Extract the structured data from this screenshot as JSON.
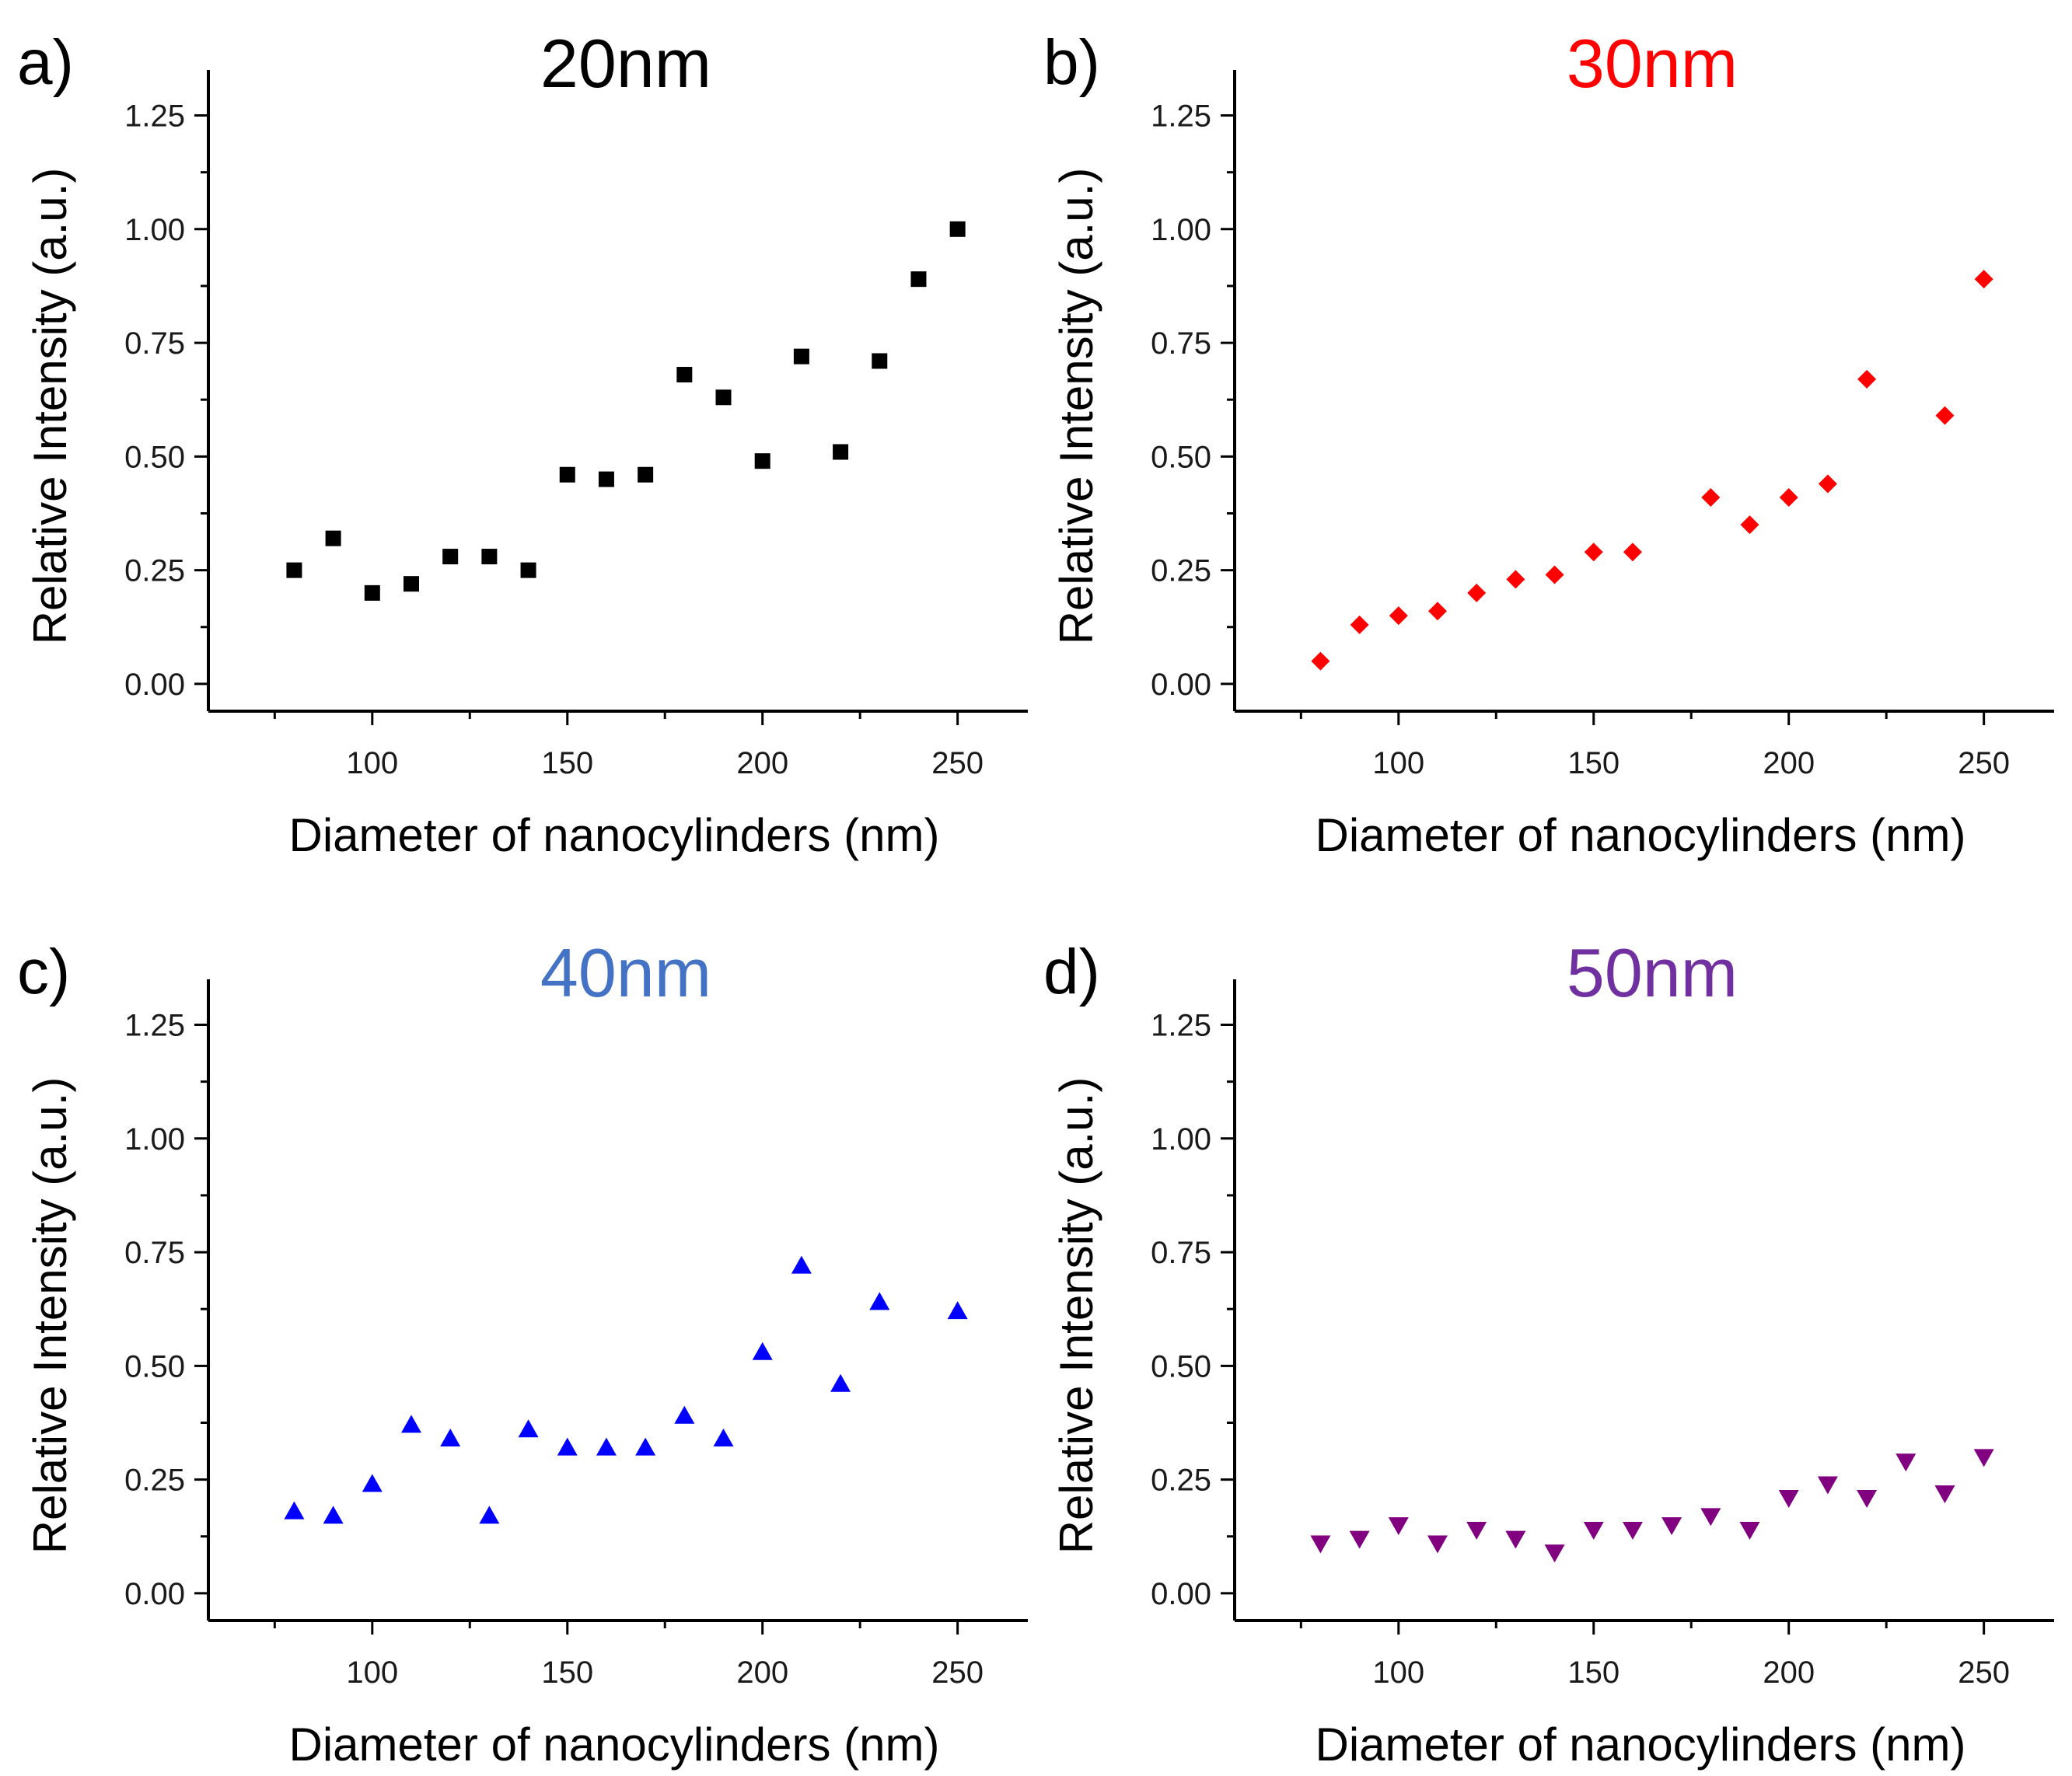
{
  "chart_data": [
    {
      "panel_label": "a)",
      "type": "scatter",
      "title": "20nm",
      "title_color": "#000000",
      "marker": "square",
      "marker_color": "#000000",
      "xlabel": "Diameter of nanocylinders (nm)",
      "ylabel": "Relative Intensity (a.u.)",
      "xlim": [
        58,
        268
      ],
      "ylim": [
        -0.06,
        1.35
      ],
      "xticks": [
        100,
        150,
        200,
        250
      ],
      "xtick_labels": [
        "100",
        "150",
        "200",
        "250"
      ],
      "yticks": [
        0.0,
        0.25,
        0.5,
        0.75,
        1.0,
        1.25
      ],
      "ytick_labels": [
        "0.00",
        "0.25",
        "0.50",
        "0.75",
        "1.00",
        "1.25"
      ],
      "x": [
        80,
        90,
        100,
        110,
        120,
        130,
        140,
        150,
        160,
        170,
        180,
        190,
        200,
        210,
        220,
        230,
        240,
        250
      ],
      "y": [
        0.25,
        0.32,
        0.2,
        0.22,
        0.28,
        0.28,
        0.25,
        0.46,
        0.45,
        0.46,
        0.68,
        0.63,
        0.49,
        0.72,
        0.51,
        0.71,
        0.89,
        1.0
      ]
    },
    {
      "panel_label": "b)",
      "type": "scatter",
      "title": "30nm",
      "title_color": "#ff0000",
      "marker": "diamond",
      "marker_color": "#ff0000",
      "xlabel": "Diameter of nanocylinders (nm)",
      "ylabel": "Relative Intensity (a.u.)",
      "xlim": [
        58,
        268
      ],
      "ylim": [
        -0.06,
        1.35
      ],
      "xticks": [
        100,
        150,
        200,
        250
      ],
      "xtick_labels": [
        "100",
        "150",
        "200",
        "250"
      ],
      "yticks": [
        0.0,
        0.25,
        0.5,
        0.75,
        1.0,
        1.25
      ],
      "ytick_labels": [
        "0.00",
        "0.25",
        "0.50",
        "0.75",
        "1.00",
        "1.25"
      ],
      "x": [
        80,
        90,
        100,
        110,
        120,
        130,
        140,
        150,
        160,
        180,
        190,
        200,
        210,
        220,
        240,
        250
      ],
      "y": [
        0.05,
        0.13,
        0.15,
        0.16,
        0.2,
        0.23,
        0.24,
        0.29,
        0.29,
        0.41,
        0.35,
        0.41,
        0.44,
        0.67,
        0.59,
        0.89
      ]
    },
    {
      "panel_label": "c)",
      "type": "scatter",
      "title": "40nm",
      "title_color": "#4472c4",
      "marker": "triangle-up",
      "marker_color": "#0000ff",
      "xlabel": "Diameter of nanocylinders (nm)",
      "ylabel": "Relative Intensity (a.u.)",
      "xlim": [
        58,
        268
      ],
      "ylim": [
        -0.06,
        1.35
      ],
      "xticks": [
        100,
        150,
        200,
        250
      ],
      "xtick_labels": [
        "100",
        "150",
        "200",
        "250"
      ],
      "yticks": [
        0.0,
        0.25,
        0.5,
        0.75,
        1.0,
        1.25
      ],
      "ytick_labels": [
        "0.00",
        "0.25",
        "0.50",
        "0.75",
        "1.00",
        "1.25"
      ],
      "x": [
        80,
        90,
        100,
        110,
        120,
        130,
        140,
        150,
        160,
        170,
        180,
        190,
        200,
        210,
        220,
        230,
        250
      ],
      "y": [
        0.18,
        0.17,
        0.24,
        0.37,
        0.34,
        0.17,
        0.36,
        0.32,
        0.32,
        0.32,
        0.39,
        0.34,
        0.53,
        0.72,
        0.46,
        0.64,
        0.62
      ]
    },
    {
      "panel_label": "d)",
      "type": "scatter",
      "title": "50nm",
      "title_color": "#7030a0",
      "marker": "triangle-down",
      "marker_color": "#800080",
      "xlabel": "Diameter of nanocylinders (nm)",
      "ylabel": "Relative Intensity (a.u.)",
      "xlim": [
        58,
        268
      ],
      "ylim": [
        -0.06,
        1.35
      ],
      "xticks": [
        100,
        150,
        200,
        250
      ],
      "xtick_labels": [
        "100",
        "150",
        "200",
        "250"
      ],
      "yticks": [
        0.0,
        0.25,
        0.5,
        0.75,
        1.0,
        1.25
      ],
      "ytick_labels": [
        "0.00",
        "0.25",
        "0.50",
        "0.75",
        "1.00",
        "1.25"
      ],
      "x": [
        80,
        90,
        100,
        110,
        120,
        130,
        140,
        150,
        160,
        170,
        180,
        190,
        200,
        210,
        220,
        230,
        240,
        250
      ],
      "y": [
        0.11,
        0.12,
        0.15,
        0.11,
        0.14,
        0.12,
        0.09,
        0.14,
        0.14,
        0.15,
        0.17,
        0.14,
        0.21,
        0.24,
        0.21,
        0.29,
        0.22,
        0.3
      ]
    }
  ]
}
